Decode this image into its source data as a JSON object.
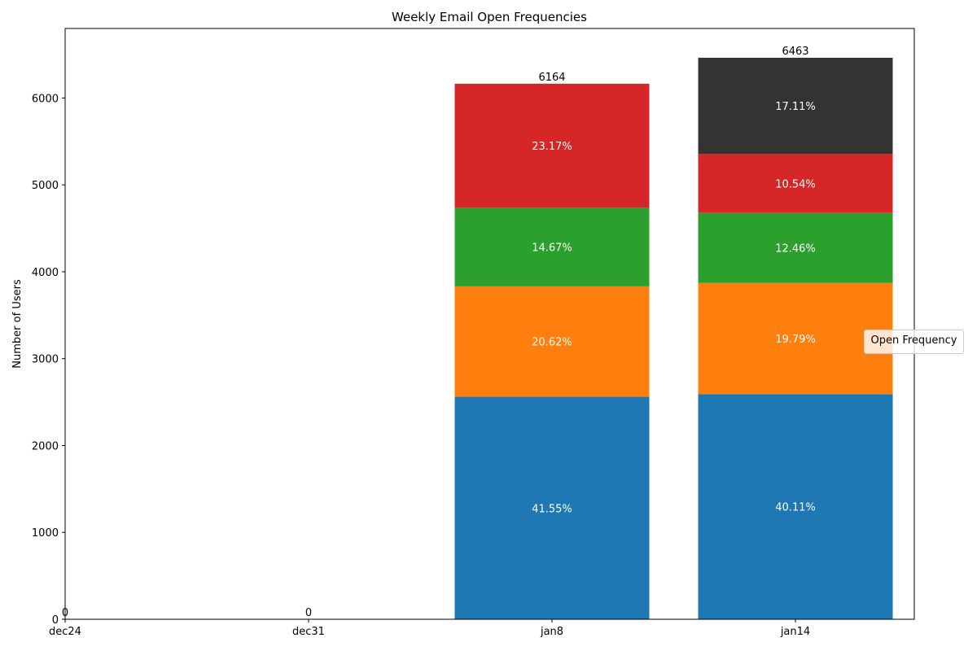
{
  "chart_data": {
    "type": "bar",
    "stacked": true,
    "title": "Weekly Email Open Frequencies",
    "xlabel": "",
    "ylabel": "Number of Users",
    "categories": [
      "dec24",
      "dec31",
      "jan8",
      "jan14"
    ],
    "totals": [
      0,
      0,
      6164,
      6463
    ],
    "ylim": [
      0,
      6800
    ],
    "yticks": [
      0,
      1000,
      2000,
      3000,
      4000,
      5000,
      6000
    ],
    "grid": false,
    "legend": {
      "title": "Open Frequency",
      "placement": "center-right"
    },
    "series": [
      {
        "values": [
          0,
          0,
          2561,
          2592
        ],
        "percent_labels": [
          "",
          "",
          "41.55%",
          "40.11%"
        ],
        "color": "#1f77b4"
      },
      {
        "values": [
          0,
          0,
          1271,
          1279
        ],
        "percent_labels": [
          "",
          "",
          "20.62%",
          "19.79%"
        ],
        "color": "#ff7f0e"
      },
      {
        "values": [
          0,
          0,
          904,
          805
        ],
        "percent_labels": [
          "",
          "",
          "14.67%",
          "12.46%"
        ],
        "color": "#2ca02c"
      },
      {
        "values": [
          0,
          0,
          1428,
          681
        ],
        "percent_labels": [
          "",
          "",
          "23.17%",
          "10.54%"
        ],
        "color": "#d62728"
      },
      {
        "values": [
          0,
          0,
          0,
          1106
        ],
        "percent_labels": [
          "",
          "",
          "",
          "17.11%"
        ],
        "color": "#333333"
      }
    ]
  }
}
